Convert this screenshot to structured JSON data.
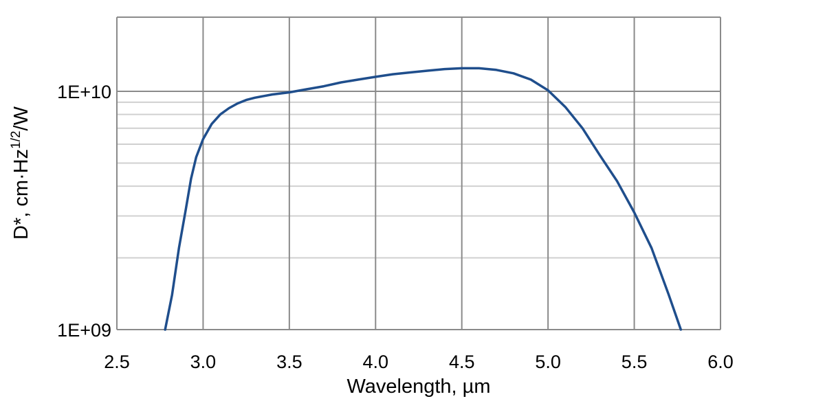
{
  "chart_data": {
    "type": "line",
    "title": "",
    "xlabel": "Wavelength, µm",
    "ylabel": {
      "prefix": "D*, cm·Hz",
      "superscript": "1/2",
      "suffix": "/W"
    },
    "xlim": [
      2.5,
      6.0
    ],
    "ylim": [
      1000000000.0,
      20000000000.0
    ],
    "y_scale": "log",
    "grid": true,
    "legend": "none",
    "x_ticks": [
      2.5,
      3.0,
      3.5,
      4.0,
      4.5,
      5.0,
      5.5,
      6.0
    ],
    "x_tick_labels": [
      "2.5",
      "3.0",
      "3.5",
      "4.0",
      "4.5",
      "5.0",
      "5.5",
      "6.0"
    ],
    "y_major_ticks": [
      1000000000.0,
      10000000000.0
    ],
    "y_tick_labels": [
      "1E+09",
      "1E+10"
    ],
    "y_minor_gridlines": [
      2000000000.0,
      3000000000.0,
      4000000000.0,
      5000000000.0,
      6000000000.0,
      7000000000.0,
      8000000000.0,
      9000000000.0
    ],
    "line_color": "#1f4e8c",
    "series": [
      {
        "x": [
          2.78,
          2.82,
          2.86,
          2.9,
          2.93,
          2.96,
          3.0,
          3.05,
          3.1,
          3.15,
          3.2,
          3.25,
          3.3,
          3.4,
          3.5,
          3.6,
          3.7,
          3.8,
          3.9,
          4.0,
          4.1,
          4.2,
          4.3,
          4.4,
          4.5,
          4.6,
          4.7,
          4.8,
          4.9,
          5.0,
          5.1,
          5.2,
          5.3,
          5.4,
          5.5,
          5.6,
          5.7,
          5.77
        ],
        "values": [
          1000000000.0,
          1400000000.0,
          2200000000.0,
          3200000000.0,
          4300000000.0,
          5300000000.0,
          6300000000.0,
          7300000000.0,
          8000000000.0,
          8500000000.0,
          8900000000.0,
          9200000000.0,
          9400000000.0,
          9700000000.0,
          9900000000.0,
          10200000000.0,
          10500000000.0,
          10900000000.0,
          11200000000.0,
          11500000000.0,
          11800000000.0,
          12000000000.0,
          12200000000.0,
          12400000000.0,
          12500000000.0,
          12500000000.0,
          12300000000.0,
          11900000000.0,
          11200000000.0,
          10100000000.0,
          8600000000.0,
          7000000000.0,
          5400000000.0,
          4200000000.0,
          3100000000.0,
          2200000000.0,
          1400000000.0,
          1000000000.0
        ]
      }
    ]
  }
}
